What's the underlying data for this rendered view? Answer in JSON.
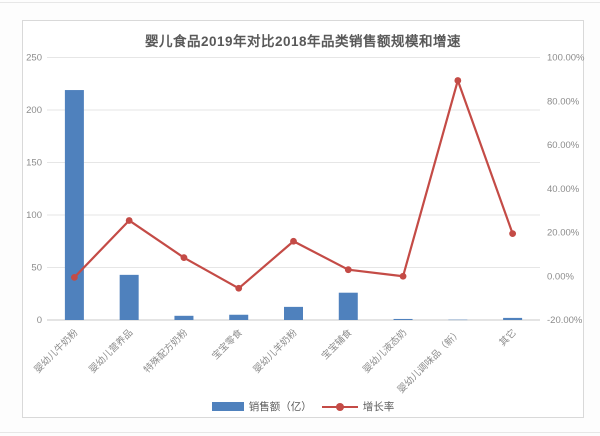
{
  "chart_data": {
    "type": "combo-bar-line",
    "title": "婴儿食品2019年对比2018年品类销售额规模和增速",
    "categories": [
      "婴幼儿牛奶粉",
      "婴幼儿营养品",
      "特殊配方奶粉",
      "宝宝零食",
      "婴幼儿羊奶粉",
      "宝宝辅食",
      "婴幼儿液态奶",
      "婴幼儿调味品（新）",
      "其它"
    ],
    "series": [
      {
        "name": "销售额（亿）",
        "type": "bar",
        "axis": "left",
        "values": [
          219,
          43,
          4,
          5,
          12.5,
          26,
          1,
          0.3,
          2
        ]
      },
      {
        "name": "增长率",
        "type": "line",
        "axis": "right",
        "values_pct": [
          -0.5,
          25.5,
          8.5,
          -5.5,
          16,
          3,
          0,
          89.5,
          19.5
        ]
      }
    ],
    "left_axis": {
      "min": 0,
      "max": 250,
      "step": 50,
      "ticks": [
        "0",
        "50",
        "100",
        "150",
        "200",
        "250"
      ]
    },
    "right_axis": {
      "min": -20,
      "max": 100,
      "step": 20,
      "ticks": [
        "-20.00%",
        "0.00%",
        "20.00%",
        "40.00%",
        "60.00%",
        "80.00%",
        "100.00%"
      ]
    },
    "grid": true,
    "legend_position": "bottom",
    "legend": [
      {
        "label": "销售额（亿）",
        "marker": "bar-swatch"
      },
      {
        "label": "增长率",
        "marker": "line-dot"
      }
    ]
  },
  "colors": {
    "bar": "#4f81bd",
    "line": "#c44b46",
    "gridline": "#e6e6e6",
    "axis_line": "#c9c9c9",
    "axis_text": "#8c8c8c",
    "title_text": "#595959",
    "frame_border": "#d9d9d9"
  }
}
